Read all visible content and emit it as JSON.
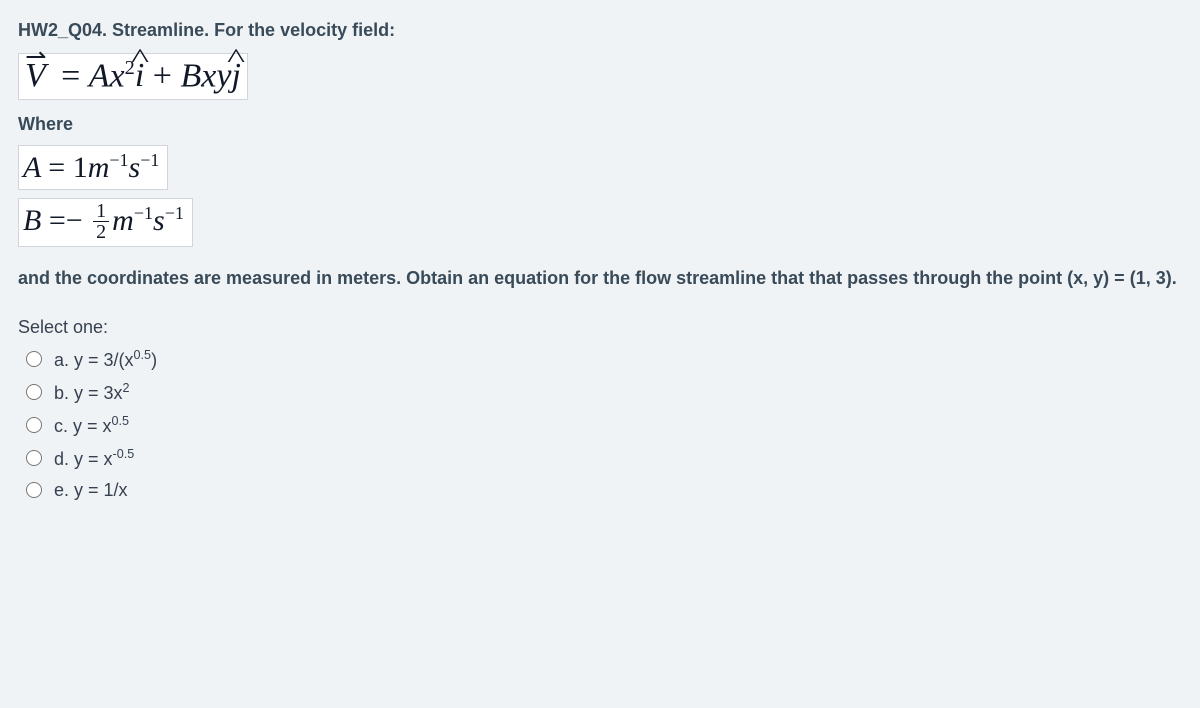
{
  "colors": {
    "background": "#f0f3f5",
    "heading_text": "#394a59",
    "body_text": "#374151",
    "equation_text": "#111827",
    "equation_bg": "#ffffff",
    "equation_border": "#d1d5db"
  },
  "typography": {
    "heading_fontsize": 18,
    "heading_weight": 700,
    "equation_fontsize_main": 34,
    "equation_fontsize_var": 30,
    "body_fontsize": 18,
    "equation_font": "Times New Roman",
    "body_font": "Arial"
  },
  "title": "HW2_Q04. Streamline. For the velocity field:",
  "velocity_equation_plain": "V = Ax^2 i + Bxy j",
  "where_label": "Where",
  "constant_A_plain": "A = 1 m^-1 s^-1",
  "constant_B_plain": "B = -1/2 m^-1 s^-1",
  "instruction": "and the coordinates are measured in meters. Obtain an equation for the flow streamline that that passes through the point (x, y) = (1, 3).",
  "select_label": "Select one:",
  "options": [
    {
      "letter": "a.",
      "plain": "y = 3/(x^0.5)"
    },
    {
      "letter": "b.",
      "plain": "y = 3x^2"
    },
    {
      "letter": "c.",
      "plain": "y = x^0.5"
    },
    {
      "letter": "d.",
      "plain": "y = x^-0.5"
    },
    {
      "letter": "e.",
      "plain": "y = 1/x"
    }
  ]
}
